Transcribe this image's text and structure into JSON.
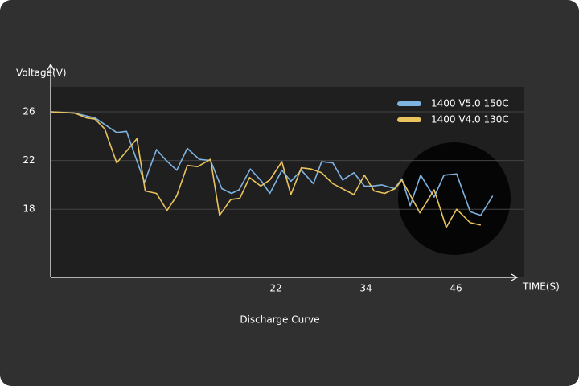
{
  "chart_data": {
    "type": "line",
    "title": "Discharge Curve",
    "x_label": "TIME(S)",
    "y_label": "Voltage(V)",
    "xlim": [
      -8,
      55
    ],
    "ylim": [
      12.4,
      28.05
    ],
    "xticks": [
      22,
      34,
      46
    ],
    "yticks": [
      18,
      22,
      26
    ],
    "grid": true,
    "legend": "upper right",
    "series": [
      {
        "name": "1400 V5.0 150C",
        "color": "#7fb3e2",
        "x": [
          -8.0,
          -4.8,
          -2.1,
          0.8,
          2.1,
          4.5,
          6.1,
          7.4,
          8.8,
          10.2,
          11.8,
          13.3,
          14.8,
          16.1,
          17.1,
          18.6,
          20.1,
          21.2,
          22.8,
          24.0,
          25.4,
          27.0,
          28.1,
          29.6,
          30.9,
          32.4,
          33.8,
          34.8,
          36.1,
          37.8,
          38.8,
          39.9,
          41.3,
          43.1,
          44.4,
          46.1,
          47.9,
          49.3,
          50.9
        ],
        "values": [
          26.0,
          25.9,
          25.5,
          24.3,
          24.4,
          20.2,
          22.9,
          22.0,
          21.2,
          23.0,
          22.1,
          22.0,
          19.7,
          19.3,
          19.6,
          21.3,
          20.3,
          19.3,
          21.2,
          20.3,
          21.2,
          20.1,
          21.9,
          21.8,
          20.4,
          21.0,
          19.9,
          19.9,
          20.0,
          19.7,
          20.5,
          18.3,
          20.8,
          19.0,
          20.8,
          20.9,
          17.8,
          17.5,
          19.1
        ]
      },
      {
        "name": "1400 V4.0 130C",
        "color": "#e8c35e",
        "x": [
          -8.0,
          -4.8,
          -3.2,
          -2.1,
          -0.8,
          0.8,
          3.5,
          4.6,
          6.1,
          7.5,
          8.8,
          10.2,
          11.6,
          13.3,
          14.5,
          16.0,
          17.2,
          18.5,
          20.0,
          21.2,
          22.8,
          24.0,
          25.4,
          26.7,
          28.1,
          29.6,
          32.4,
          33.8,
          35.1,
          36.5,
          37.9,
          38.8,
          41.2,
          43.1,
          44.7,
          46.1,
          47.9,
          49.3
        ],
        "values": [
          26.0,
          25.9,
          25.5,
          25.4,
          24.6,
          21.8,
          23.8,
          19.5,
          19.3,
          17.9,
          19.1,
          21.6,
          21.5,
          22.1,
          17.5,
          18.8,
          18.9,
          20.6,
          19.9,
          20.4,
          21.9,
          19.2,
          21.4,
          21.3,
          21.0,
          20.1,
          19.2,
          20.8,
          19.5,
          19.3,
          19.7,
          20.4,
          17.7,
          19.6,
          16.5,
          18.0,
          16.9,
          16.7
        ]
      }
    ]
  }
}
